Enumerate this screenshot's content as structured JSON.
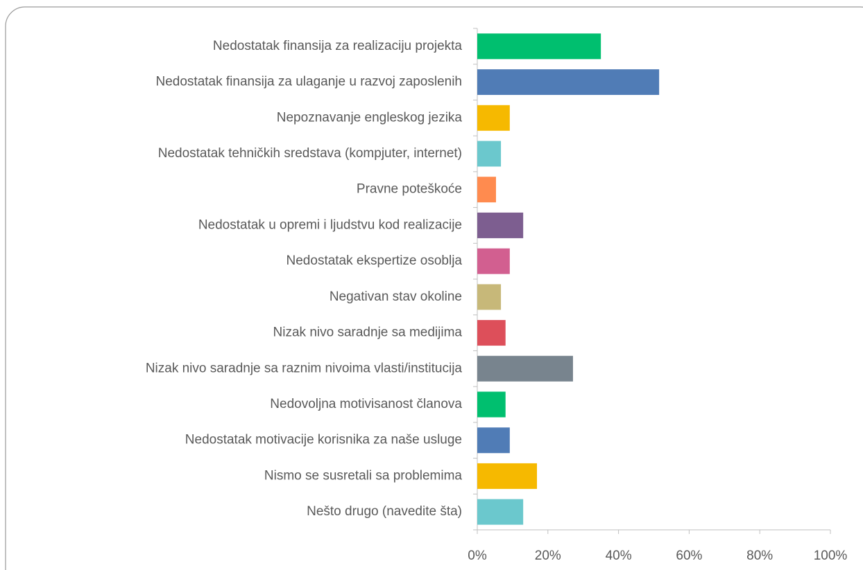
{
  "chart_data": {
    "type": "bar",
    "orientation": "horizontal",
    "categories": [
      "Nedostatak finansija za realizaciju projekta",
      "Nedostatak finansija za ulaganje u razvoj zaposlenih",
      "Nepoznavanje engleskog jezika",
      "Nedostatak tehničkih sredstava (kompjuter, internet)",
      "Pravne poteškoće",
      "Nedostatak u opremi i ljudstvu kod realizacije",
      "Nedostatak ekspertize osoblja",
      "Negativan stav okoline",
      "Nizak nivo saradnje sa medijima",
      "Nizak nivo saradnje sa raznim nivoima vlasti/institucija",
      "Nedovoljna motivisanost članova",
      "Nedostatak motivacije korisnika za naše usluge",
      "Nismo se susretali sa problemima",
      "Nešto drugo (navedite šta)"
    ],
    "values": [
      35.0,
      51.5,
      9.2,
      6.7,
      5.3,
      13.0,
      9.2,
      6.7,
      8.0,
      27.1,
      8.0,
      9.2,
      16.9,
      13.0
    ],
    "colors": [
      "#00bf6f",
      "#507cb6",
      "#f6b900",
      "#6bc8cd",
      "#ff8b4f",
      "#7d5e90",
      "#d25f90",
      "#c7b879",
      "#dd4f5a",
      "#78848e",
      "#00bf6f",
      "#507cb6",
      "#f6b900",
      "#6bc8cd"
    ],
    "xlim": [
      0,
      100
    ],
    "xticks": [
      {
        "value": 0,
        "label": "0%"
      },
      {
        "value": 20,
        "label": "20%"
      },
      {
        "value": 40,
        "label": "40%"
      },
      {
        "value": 60,
        "label": "60%"
      },
      {
        "value": 80,
        "label": "80%"
      },
      {
        "value": 100,
        "label": "100%"
      }
    ]
  }
}
